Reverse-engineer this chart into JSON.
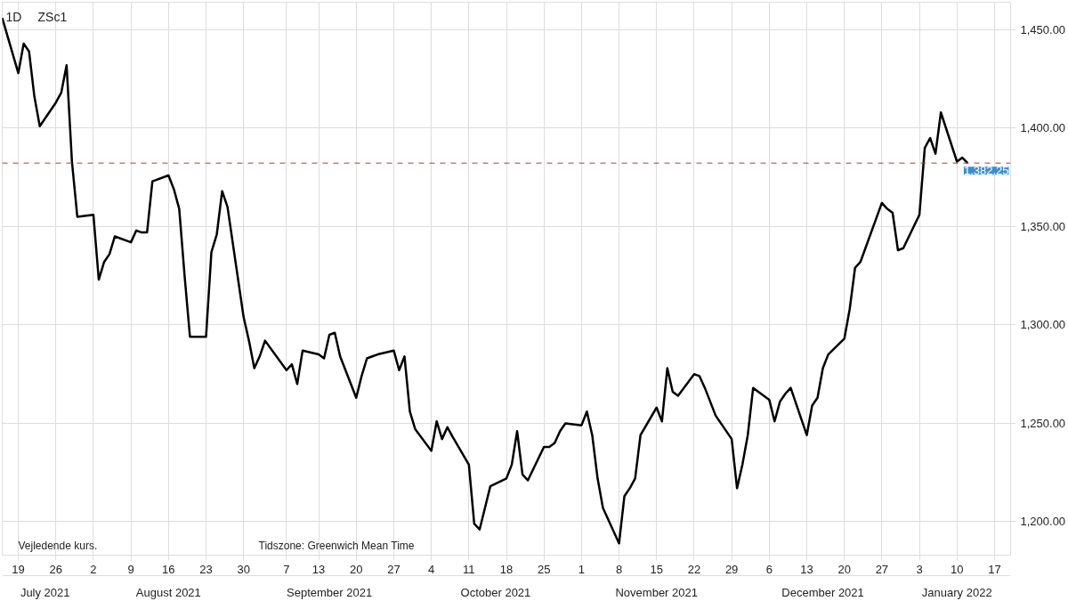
{
  "chart_data": {
    "type": "line",
    "title": "ZSc1",
    "subtitle": "1D",
    "annotations": [
      "Vejledende kurs.",
      "Tidszone: Greenwich Mean Time"
    ],
    "x": [
      "2021-07-16",
      "2021-07-19",
      "2021-07-20",
      "2021-07-21",
      "2021-07-22",
      "2021-07-23",
      "2021-07-26",
      "2021-07-27",
      "2021-07-28",
      "2021-07-29",
      "2021-07-30",
      "2021-08-02",
      "2021-08-03",
      "2021-08-04",
      "2021-08-05",
      "2021-08-06",
      "2021-08-09",
      "2021-08-10",
      "2021-08-11",
      "2021-08-12",
      "2021-08-13",
      "2021-08-16",
      "2021-08-17",
      "2021-08-18",
      "2021-08-19",
      "2021-08-20",
      "2021-08-23",
      "2021-08-24",
      "2021-08-25",
      "2021-08-26",
      "2021-08-27",
      "2021-08-30",
      "2021-08-31",
      "2021-09-01",
      "2021-09-02",
      "2021-09-03",
      "2021-09-07",
      "2021-09-08",
      "2021-09-09",
      "2021-09-10",
      "2021-09-13",
      "2021-09-14",
      "2021-09-15",
      "2021-09-16",
      "2021-09-17",
      "2021-09-20",
      "2021-09-21",
      "2021-09-22",
      "2021-09-23",
      "2021-09-24",
      "2021-09-27",
      "2021-09-28",
      "2021-09-29",
      "2021-09-30",
      "2021-10-01",
      "2021-10-04",
      "2021-10-05",
      "2021-10-06",
      "2021-10-07",
      "2021-10-08",
      "2021-10-11",
      "2021-10-12",
      "2021-10-13",
      "2021-10-14",
      "2021-10-15",
      "2021-10-18",
      "2021-10-19",
      "2021-10-20",
      "2021-10-21",
      "2021-10-22",
      "2021-10-25",
      "2021-10-26",
      "2021-10-27",
      "2021-10-28",
      "2021-10-29",
      "2021-11-01",
      "2021-11-02",
      "2021-11-03",
      "2021-11-04",
      "2021-11-05",
      "2021-11-08",
      "2021-11-09",
      "2021-11-10",
      "2021-11-11",
      "2021-11-12",
      "2021-11-15",
      "2021-11-16",
      "2021-11-17",
      "2021-11-18",
      "2021-11-19",
      "2021-11-22",
      "2021-11-23",
      "2021-11-24",
      "2021-11-26",
      "2021-11-29",
      "2021-11-30",
      "2021-12-01",
      "2021-12-02",
      "2021-12-03",
      "2021-12-06",
      "2021-12-07",
      "2021-12-08",
      "2021-12-09",
      "2021-12-10",
      "2021-12-13",
      "2021-12-14",
      "2021-12-15",
      "2021-12-16",
      "2021-12-17",
      "2021-12-20",
      "2021-12-21",
      "2021-12-22",
      "2021-12-23",
      "2021-12-27",
      "2021-12-28",
      "2021-12-29",
      "2021-12-30",
      "2021-12-31",
      "2022-01-03",
      "2022-01-04",
      "2022-01-05",
      "2022-01-06",
      "2022-01-07",
      "2022-01-10",
      "2022-01-11",
      "2022-01-12"
    ],
    "series": [
      {
        "color": "#000000",
        "values": [
          1456,
          1428,
          1443,
          1439,
          1416,
          1401,
          1413,
          1418,
          1432,
          1383,
          1355,
          1356,
          1323,
          1332,
          1336,
          1345,
          1342,
          1348,
          1347,
          1347,
          1373,
          1376,
          1369,
          1359,
          1325,
          1294,
          1294,
          1337,
          1346,
          1368,
          1360,
          1304,
          1292,
          1278,
          1284,
          1292,
          1277,
          1280,
          1270,
          1287,
          1285,
          1283,
          1295,
          1296,
          1284,
          1263,
          1274,
          1283,
          1284,
          1285,
          1287,
          1277,
          1284,
          1256,
          1247,
          1236,
          1251,
          1242,
          1248,
          1243,
          1229,
          1199,
          1196,
          1207,
          1218,
          1222,
          1229,
          1246,
          1224,
          1221,
          1238,
          1238,
          1240,
          1246,
          1250,
          1249,
          1256,
          1244,
          1222,
          1207,
          1189,
          1213,
          1217,
          1222,
          1244,
          1258,
          1251,
          1278,
          1266,
          1264,
          1275,
          1274,
          1268,
          1254,
          1242,
          1217,
          1229,
          1244,
          1268,
          1262,
          1251,
          1261,
          1265,
          1268,
          1244,
          1259,
          1263,
          1278,
          1285,
          1293,
          1308,
          1329,
          1332,
          1362,
          1359,
          1357,
          1338,
          1339,
          1356,
          1390,
          1395,
          1387,
          1408,
          1383,
          1385,
          1382.25
        ]
      }
    ],
    "xlim": [
      "2021-07-16",
      "2022-01-20"
    ],
    "xticks": [
      {
        "value": "2021-07-19",
        "label": "19"
      },
      {
        "value": "2021-07-26",
        "label": "26"
      },
      {
        "value": "2021-08-02",
        "label": "2"
      },
      {
        "value": "2021-08-09",
        "label": "9"
      },
      {
        "value": "2021-08-16",
        "label": "16"
      },
      {
        "value": "2021-08-23",
        "label": "23"
      },
      {
        "value": "2021-08-30",
        "label": "30"
      },
      {
        "value": "2021-09-07",
        "label": "7"
      },
      {
        "value": "2021-09-13",
        "label": "13"
      },
      {
        "value": "2021-09-20",
        "label": "20"
      },
      {
        "value": "2021-09-27",
        "label": "27"
      },
      {
        "value": "2021-10-04",
        "label": "4"
      },
      {
        "value": "2021-10-11",
        "label": "11"
      },
      {
        "value": "2021-10-18",
        "label": "18"
      },
      {
        "value": "2021-10-25",
        "label": "25"
      },
      {
        "value": "2021-11-01",
        "label": "1"
      },
      {
        "value": "2021-11-08",
        "label": "8"
      },
      {
        "value": "2021-11-15",
        "label": "15"
      },
      {
        "value": "2021-11-22",
        "label": "22"
      },
      {
        "value": "2021-11-29",
        "label": "29"
      },
      {
        "value": "2021-12-06",
        "label": "6"
      },
      {
        "value": "2021-12-13",
        "label": "13"
      },
      {
        "value": "2021-12-20",
        "label": "20"
      },
      {
        "value": "2021-12-27",
        "label": "27"
      },
      {
        "value": "2022-01-03",
        "label": "3"
      },
      {
        "value": "2022-01-10",
        "label": "10"
      },
      {
        "value": "2022-01-17",
        "label": "17"
      }
    ],
    "x2lim": [
      "2021-07-16",
      "2022-01-20"
    ],
    "x2ticks": [
      {
        "value": "2021-07-24",
        "label": "July 2021"
      },
      {
        "value": "2021-08-16",
        "label": "August 2021"
      },
      {
        "value": "2021-09-15",
        "label": "September 2021"
      },
      {
        "value": "2021-10-16",
        "label": "October 2021"
      },
      {
        "value": "2021-11-15",
        "label": "November 2021"
      },
      {
        "value": "2021-12-16",
        "label": "December 2021"
      },
      {
        "value": "2022-01-10",
        "label": "January 2022"
      }
    ],
    "ylim": [
      1183,
      1464
    ],
    "yticks": [
      {
        "value": 1200,
        "label": "1,200.00"
      },
      {
        "value": 1250,
        "label": "1,250.00"
      },
      {
        "value": 1300,
        "label": "1,300.00"
      },
      {
        "value": 1350,
        "label": "1,350.00"
      },
      {
        "value": 1400,
        "label": "1,400.00"
      },
      {
        "value": 1450,
        "label": "1,450.00"
      }
    ],
    "ref_lines": [
      {
        "axis": "y",
        "value": 1382.25,
        "label": "1,382.25",
        "color": "#b03a3a",
        "line_style": "dashed"
      }
    ],
    "grid": true
  }
}
